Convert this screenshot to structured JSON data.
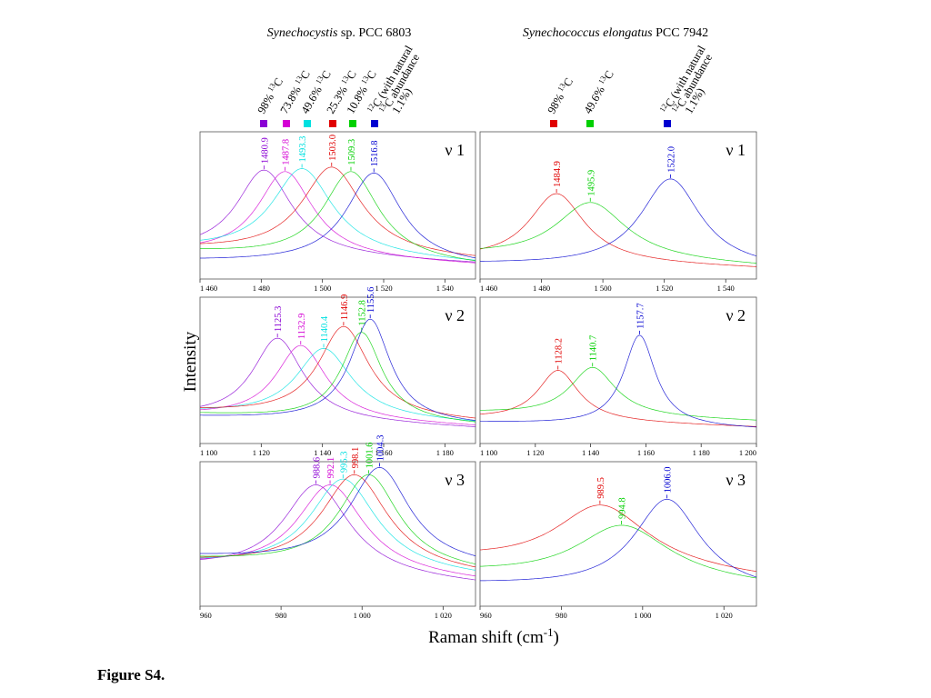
{
  "figure_label": "Figure S4.",
  "y_axis_label": "Intensity",
  "x_axis_label": {
    "main": "Raman shift (cm",
    "sup": "-1",
    "close": ")"
  },
  "columns": [
    {
      "title_italic": "Synechocystis",
      "title_rest": " sp. PCC 6803",
      "legend": [
        {
          "color": "#8a00d4",
          "label_lines": [
            {
              "pre": "98% ",
              "sup": "13",
              "post": "C"
            }
          ]
        },
        {
          "color": "#d400d4",
          "label_lines": [
            {
              "pre": "73.8% ",
              "sup": "13",
              "post": "C"
            }
          ]
        },
        {
          "color": "#00e0e0",
          "label_lines": [
            {
              "pre": "49.6% ",
              "sup": "13",
              "post": "C"
            }
          ]
        },
        {
          "color": "#e00000",
          "label_lines": [
            {
              "pre": "25.3% ",
              "sup": "13",
              "post": "C"
            }
          ]
        },
        {
          "color": "#00d000",
          "label_lines": [
            {
              "pre": "10.8% ",
              "sup": "13",
              "post": "C"
            }
          ]
        },
        {
          "color": "#0000d0",
          "label_lines": [
            {
              "pre": "",
              "sup": "12",
              "post": "C (with natural"
            },
            {
              "pre": "",
              "sup": "13",
              "post": "C abundance"
            },
            {
              "pre": "1.1%)",
              "sup": "",
              "post": ""
            }
          ]
        }
      ]
    },
    {
      "title_italic": "Synechococcus elongatus",
      "title_rest": " PCC 7942",
      "legend": [
        {
          "color": "#e00000",
          "label_lines": [
            {
              "pre": "98% ",
              "sup": "13",
              "post": "C"
            }
          ]
        },
        {
          "color": "#00d000",
          "label_lines": [
            {
              "pre": "49.6% ",
              "sup": "13",
              "post": "C"
            }
          ]
        },
        {
          "color": "#0000d0",
          "label_lines": [
            {
              "pre": "",
              "sup": "12",
              "post": "C (with natural"
            },
            {
              "pre": "",
              "sup": "12",
              "post": "C abundance"
            },
            {
              "pre": "1.1%)",
              "sup": "",
              "post": ""
            }
          ]
        }
      ]
    }
  ],
  "chart_data": [
    {
      "type": "line",
      "panel": "Synechocystis sp. PCC 6803 / ν 1",
      "mode_label": "ν 1",
      "xlim": [
        1460,
        1550
      ],
      "ticks": [
        1460,
        1480,
        1500,
        1520,
        1540
      ],
      "tick_labels": [
        "1 460",
        "1 480",
        "1 500",
        "1 520",
        "1 540"
      ],
      "series": [
        {
          "color": "#8a00d4",
          "peak": 1480.9,
          "peak_label": "1480.9"
        },
        {
          "color": "#d400d4",
          "peak": 1487.8,
          "peak_label": "1487.8"
        },
        {
          "color": "#00e0e0",
          "peak": 1493.3,
          "peak_label": "1493.3"
        },
        {
          "color": "#e00000",
          "peak": 1503.0,
          "peak_label": "1503.0"
        },
        {
          "color": "#00d000",
          "peak": 1509.3,
          "peak_label": "1509.3"
        },
        {
          "color": "#0000d0",
          "peak": 1516.8,
          "peak_label": "1516.8"
        }
      ]
    },
    {
      "type": "line",
      "panel": "Synechococcus elongatus PCC 7942 / ν 1",
      "mode_label": "ν 1",
      "xlim": [
        1460,
        1550
      ],
      "ticks": [
        1460,
        1480,
        1500,
        1520,
        1540
      ],
      "tick_labels": [
        "1 460",
        "1 480",
        "1 500",
        "1 520",
        "1 540"
      ],
      "series": [
        {
          "color": "#e00000",
          "peak": 1484.9,
          "peak_label": "1484.9"
        },
        {
          "color": "#00d000",
          "peak": 1495.9,
          "peak_label": "1495.9"
        },
        {
          "color": "#0000d0",
          "peak": 1522.0,
          "peak_label": "1522.0"
        }
      ]
    },
    {
      "type": "line",
      "panel": "Synechocystis sp. PCC 6803 / ν 2",
      "mode_label": "ν 2",
      "xlim": [
        1100,
        1190
      ],
      "ticks": [
        1100,
        1120,
        1140,
        1160,
        1180
      ],
      "tick_labels": [
        "1 100",
        "1 120",
        "1 140",
        "1 160",
        "1 180"
      ],
      "series": [
        {
          "color": "#8a00d4",
          "peak": 1125.3,
          "peak_label": "1125.3"
        },
        {
          "color": "#d400d4",
          "peak": 1132.9,
          "peak_label": "1132.9"
        },
        {
          "color": "#00e0e0",
          "peak": 1140.4,
          "peak_label": "1140.4"
        },
        {
          "color": "#e00000",
          "peak": 1146.9,
          "peak_label": "1146.9"
        },
        {
          "color": "#00d000",
          "peak": 1152.8,
          "peak_label": "1152.8"
        },
        {
          "color": "#0000d0",
          "peak": 1155.6,
          "peak_label": "1155.6"
        }
      ]
    },
    {
      "type": "line",
      "panel": "Synechococcus elongatus PCC 7942 / ν 2",
      "mode_label": "ν 2",
      "xlim": [
        1100,
        1200
      ],
      "ticks": [
        1100,
        1120,
        1140,
        1160,
        1180,
        1200
      ],
      "tick_labels": [
        "1 100",
        "1 120",
        "1 140",
        "1 160",
        "1 180",
        "1 200"
      ],
      "series": [
        {
          "color": "#e00000",
          "peak": 1128.2,
          "peak_label": "1128.2"
        },
        {
          "color": "#00d000",
          "peak": 1140.7,
          "peak_label": "1140.7"
        },
        {
          "color": "#0000d0",
          "peak": 1157.7,
          "peak_label": "1157.7"
        }
      ]
    },
    {
      "type": "line",
      "panel": "Synechocystis sp. PCC 6803 / ν 3",
      "mode_label": "ν 3",
      "xlim": [
        960,
        1028
      ],
      "ticks": [
        960,
        980,
        1000,
        1020
      ],
      "tick_labels": [
        "960",
        "980",
        "1 000",
        "1 020"
      ],
      "series": [
        {
          "color": "#8a00d4",
          "peak": 988.6,
          "peak_label": "988.6"
        },
        {
          "color": "#d400d4",
          "peak": 992.1,
          "peak_label": "992.1"
        },
        {
          "color": "#00e0e0",
          "peak": 995.3,
          "peak_label": "995.3"
        },
        {
          "color": "#e00000",
          "peak": 998.1,
          "peak_label": "998.1"
        },
        {
          "color": "#00d000",
          "peak": 1001.6,
          "peak_label": "1001.6"
        },
        {
          "color": "#0000d0",
          "peak": 1004.3,
          "peak_label": "1004.3"
        }
      ]
    },
    {
      "type": "line",
      "panel": "Synechococcus elongatus PCC 7942 / ν 3",
      "mode_label": "ν 3",
      "xlim": [
        960,
        1028
      ],
      "ticks": [
        960,
        980,
        1000,
        1020
      ],
      "tick_labels": [
        "960",
        "980",
        "1 000",
        "1 020"
      ],
      "series": [
        {
          "color": "#e00000",
          "peak": 989.5,
          "peak_label": "989.5"
        },
        {
          "color": "#00d000",
          "peak": 994.8,
          "peak_label": "994.8"
        },
        {
          "color": "#0000d0",
          "peak": 1006.0,
          "peak_label": "1006.0"
        }
      ]
    }
  ]
}
